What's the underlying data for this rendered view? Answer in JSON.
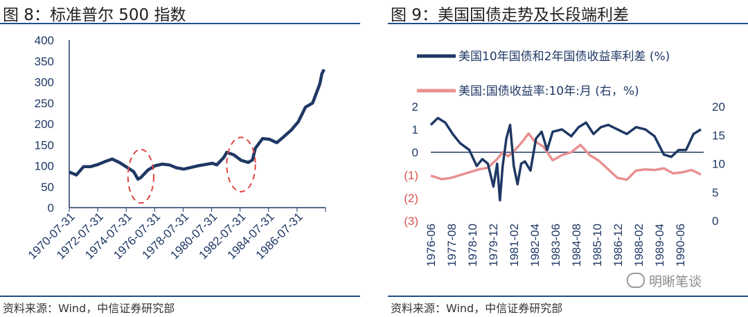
{
  "left_panel": {
    "title": "图 8：标准普尔 500 指数",
    "source": "资料来源：Wind，中信证券研究部"
  },
  "right_panel": {
    "title": "图 9：美国国债走势及长段端利差",
    "source": "资料来源：Wind，中信证券研究部"
  },
  "watermark": {
    "text": "明晰笔谈",
    "icon": "wechat-icon"
  },
  "colors": {
    "navy": "#1f3864",
    "salmon": "#e89090",
    "red_dash": "#e0453f",
    "rule": "#1f4e8c"
  },
  "chart_data": [
    {
      "type": "line",
      "title": "标准普尔 500 指数",
      "x_ticks": [
        "1970-07-31",
        "1972-07-31",
        "1974-07-31",
        "1976-07-31",
        "1978-07-31",
        "1980-07-31",
        "1982-07-31",
        "1984-07-31",
        "1986-07-31"
      ],
      "y_ticks": [
        "0",
        "50",
        "100",
        "150",
        "200",
        "250",
        "300",
        "350",
        "400"
      ],
      "ylim": [
        0,
        400
      ],
      "xlim": [
        1970.0,
        1987.9
      ],
      "series": [
        {
          "color": "#1f3864",
          "x": [
            1970.0,
            1970.5,
            1971.0,
            1971.5,
            1972.0,
            1972.5,
            1973.0,
            1973.5,
            1974.0,
            1974.5,
            1974.8,
            1975.0,
            1975.5,
            1976.0,
            1976.5,
            1977.0,
            1977.5,
            1978.0,
            1978.5,
            1979.0,
            1979.5,
            1980.0,
            1980.3,
            1980.8,
            1981.0,
            1981.5,
            1982.0,
            1982.5,
            1982.8,
            1983.0,
            1983.5,
            1984.0,
            1984.5,
            1985.0,
            1985.5,
            1986.0,
            1986.5,
            1987.0,
            1987.5,
            1987.65,
            1987.8
          ],
          "y": [
            85,
            78,
            98,
            98,
            103,
            110,
            116,
            108,
            97,
            86,
            68,
            72,
            90,
            100,
            104,
            102,
            95,
            92,
            96,
            100,
            103,
            106,
            102,
            120,
            132,
            126,
            113,
            108,
            114,
            142,
            165,
            163,
            155,
            170,
            185,
            205,
            240,
            250,
            295,
            320,
            330
          ]
        }
      ],
      "annotations": [
        {
          "type": "dashed-ellipse",
          "cx": 1975.0,
          "cy": 75,
          "rx": 0.9,
          "ry": 64
        },
        {
          "type": "dashed-ellipse",
          "cx": 1982.0,
          "cy": 103,
          "rx": 1.0,
          "ry": 65
        }
      ]
    },
    {
      "type": "line",
      "title": "美国国债走势及长段端利差",
      "x_ticks": [
        "1976-06",
        "1977-08",
        "1978-10",
        "1979-12",
        "1981-02",
        "1982-04",
        "1983-06",
        "1984-08",
        "1985-10",
        "1986-12",
        "1988-02",
        "1989-04",
        "1990-06"
      ],
      "y_left_ticks": [
        "2",
        "1",
        "0",
        "(1)",
        "(2)",
        "(3)"
      ],
      "y_left_values": [
        2,
        1,
        0,
        -1,
        -2,
        -3
      ],
      "y_right_ticks": [
        "20",
        "15",
        "10",
        "5",
        "0"
      ],
      "ylim_left": [
        -3,
        2
      ],
      "ylim_right": [
        0,
        20
      ],
      "xlim": [
        1976.42,
        1991.0
      ],
      "legend": [
        {
          "name": "美国10年国债和2年国债收益率利差 (%)",
          "color": "#1f3864"
        },
        {
          "name": "美国:国债收益率:10年:月 (右，%)",
          "color": "#e89090"
        }
      ],
      "series": [
        {
          "name": "美国10年国债和2年国债收益率利差 (%)",
          "axis": "left",
          "color": "#1f3864",
          "x": [
            1976.42,
            1976.8,
            1977.2,
            1977.6,
            1978.0,
            1978.5,
            1978.9,
            1979.2,
            1979.5,
            1979.8,
            1980.0,
            1980.15,
            1980.3,
            1980.5,
            1980.7,
            1980.9,
            1981.1,
            1981.3,
            1981.5,
            1981.8,
            1982.1,
            1982.4,
            1982.7,
            1983.0,
            1983.5,
            1984.0,
            1984.4,
            1984.8,
            1985.2,
            1985.6,
            1986.0,
            1986.5,
            1987.0,
            1987.5,
            1988.0,
            1988.5,
            1989.0,
            1989.4,
            1989.8,
            1990.2,
            1990.6,
            1990.8,
            1991.0
          ],
          "y": [
            1.2,
            1.5,
            1.3,
            0.8,
            0.4,
            0.1,
            -0.6,
            -0.3,
            -0.5,
            -1.5,
            -0.5,
            -2.1,
            -0.6,
            0.6,
            1.2,
            -0.6,
            -1.4,
            -0.5,
            -0.4,
            -0.8,
            0.6,
            0.9,
            0.1,
            0.9,
            1.0,
            0.7,
            1.1,
            1.3,
            0.8,
            1.1,
            1.2,
            1.0,
            0.8,
            1.1,
            1.0,
            0.7,
            -0.1,
            -0.2,
            0.1,
            0.1,
            0.8,
            0.9,
            1.0
          ]
        },
        {
          "name": "美国:国债收益率:10年:月 (右，%)",
          "axis": "right",
          "color": "#e89090",
          "x": [
            1976.42,
            1977.0,
            1977.5,
            1978.0,
            1978.5,
            1979.0,
            1979.5,
            1980.0,
            1980.3,
            1980.6,
            1981.0,
            1981.4,
            1981.7,
            1982.0,
            1982.5,
            1983.0,
            1983.5,
            1984.0,
            1984.5,
            1985.0,
            1985.5,
            1986.0,
            1986.5,
            1987.0,
            1987.5,
            1988.0,
            1988.5,
            1989.0,
            1989.5,
            1990.0,
            1990.5,
            1991.0
          ],
          "y": [
            7.9,
            7.3,
            7.5,
            8.0,
            8.5,
            9.0,
            9.3,
            10.8,
            12.0,
            11.3,
            12.5,
            14.0,
            15.3,
            14.0,
            13.0,
            10.6,
            11.5,
            12.0,
            13.3,
            11.5,
            10.5,
            9.0,
            7.5,
            7.2,
            8.8,
            9.0,
            8.9,
            9.2,
            8.3,
            8.5,
            8.9,
            8.1
          ]
        }
      ]
    }
  ]
}
